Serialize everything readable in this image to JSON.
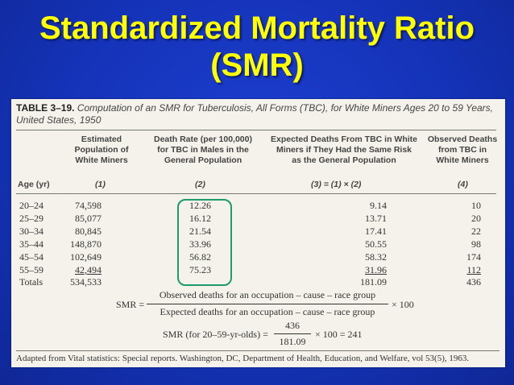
{
  "slide": {
    "title_line1": "Standardized Mortality Ratio",
    "title_line2": "(SMR)"
  },
  "table": {
    "number": "TABLE 3–19.",
    "caption": "Computation of an SMR for Tuberculosis, All Forms (TBC), for White Miners Ages 20 to 59 Years,",
    "caption2": "United States, 1950",
    "headers": {
      "col1": [
        "Estimated",
        "Population of",
        "White Miners"
      ],
      "col2": [
        "Death Rate (per 100,000)",
        "for TBC in Males in the",
        "General Population"
      ],
      "col3": [
        "Expected Deaths From TBC in White",
        "Miners if They Had the Same Risk",
        "as the General Population"
      ],
      "col4": [
        "Observed Deaths",
        "from TBC in",
        "White Miners"
      ]
    },
    "age_header": "Age (yr)",
    "col_numbers": [
      "(1)",
      "(2)",
      "(3) = (1) × (2)",
      "(4)"
    ],
    "rows": [
      {
        "age": "20–24",
        "population": "74,598",
        "rate": "12.26",
        "expected": "9.14",
        "observed": "10"
      },
      {
        "age": "25–29",
        "population": "85,077",
        "rate": "16.12",
        "expected": "13.71",
        "observed": "20"
      },
      {
        "age": "30–34",
        "population": "80,845",
        "rate": "21.54",
        "expected": "17.41",
        "observed": "22"
      },
      {
        "age": "35–44",
        "population": "148,870",
        "rate": "33.96",
        "expected": "50.55",
        "observed": "98"
      },
      {
        "age": "45–54",
        "population": "102,649",
        "rate": "56.82",
        "expected": "58.32",
        "observed": "174"
      },
      {
        "age": "55–59",
        "population": "42,494",
        "rate": "75.23",
        "expected": "31.96",
        "observed": "112"
      }
    ],
    "totals": {
      "label": "Totals",
      "population": "534,533",
      "expected": "181.09",
      "observed": "436"
    }
  },
  "formula": {
    "lhs": "SMR =",
    "numerator": "Observed deaths for an occupation – cause – race group",
    "denominator": "Expected deaths for an occupation – cause – race group",
    "times": "× 100",
    "example_lhs": "SMR (for 20–59-yr-olds) =",
    "example_num": "436",
    "example_den": "181.09",
    "example_rhs": "× 100 = 241"
  },
  "footnote": "Adapted from Vital statistics: Special reports. Washington, DC, Department of Health, Education, and Welfare, vol 53(5), 1963."
}
